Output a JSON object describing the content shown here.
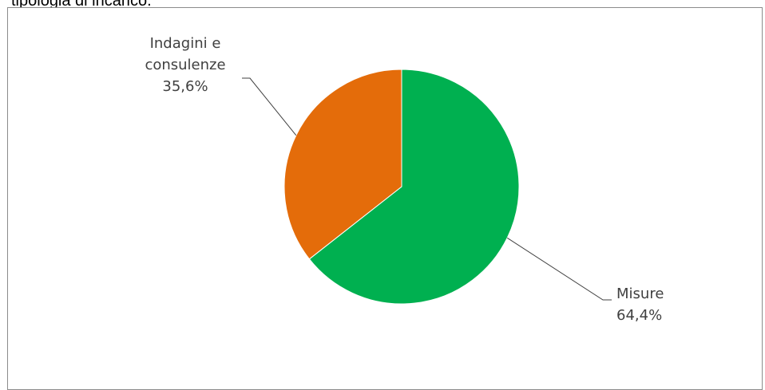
{
  "title_fragment": "tipologia di incarico.",
  "chart_data": {
    "type": "pie",
    "categories": [
      "Misure",
      "Indagini e consulenze"
    ],
    "values": [
      64.4,
      35.6
    ],
    "value_labels": [
      "64,4%",
      "35,6%"
    ],
    "colors": [
      "#00b050",
      "#e46c0a"
    ],
    "label_lines": [
      [
        "Misure",
        "64,4%"
      ],
      [
        "Indagini e",
        "consulenze",
        "35,6%"
      ]
    ],
    "start_angle_deg": 0,
    "direction": "clockwise"
  }
}
